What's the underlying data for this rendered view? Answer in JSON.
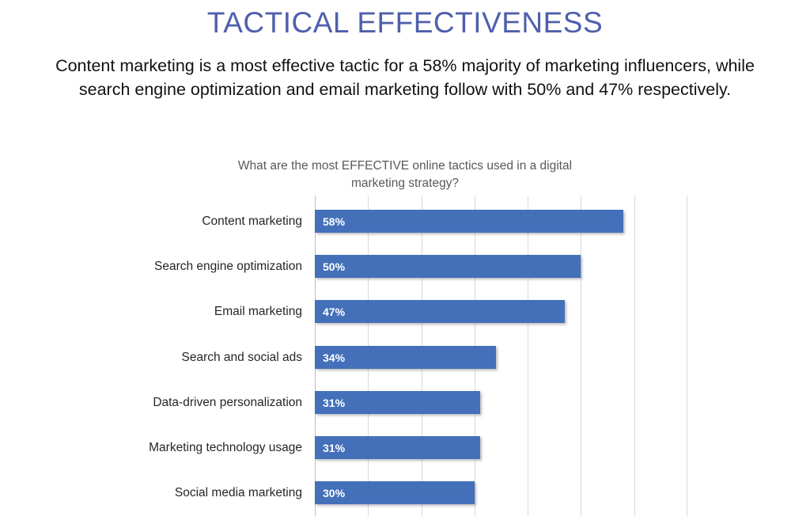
{
  "page": {
    "title": "TACTICAL EFFECTIVENESS",
    "subtitle_lines": [
      "Content marketing is a most effective tactic for a 58% majority of marketing influencers, while",
      "search engine optimization and email marketing follow with 50% and 47% respectively."
    ]
  },
  "chart": {
    "title_lines": [
      "What are the most EFFECTIVE online tactics used in a digital",
      "marketing strategy?"
    ]
  },
  "chart_data": {
    "type": "bar",
    "orientation": "horizontal",
    "title": "What are the most EFFECTIVE online tactics used in a digital marketing strategy?",
    "categories": [
      "Content marketing",
      "Search engine optimization",
      "Email marketing",
      "Search and social ads",
      "Data-driven personalization",
      "Marketing technology usage",
      "Social media marketing"
    ],
    "values": [
      58,
      50,
      47,
      34,
      31,
      31,
      30
    ],
    "value_labels": [
      "58%",
      "50%",
      "47%",
      "34%",
      "31%",
      "31%",
      "30%"
    ],
    "xlim": [
      0,
      70
    ],
    "gridline_interval": 10,
    "grid": true,
    "legend": "none",
    "bar_color": "#4470BA",
    "value_label_color": "#FFFFFF"
  },
  "colors": {
    "main_title": "#4F5FAC",
    "subtitle_text": "#111111",
    "chart_title": "#595959",
    "category_label": "#262626",
    "gridline": "#D9D9D9",
    "axis_line": "#BFBFBF",
    "background": "#FFFFFF"
  }
}
